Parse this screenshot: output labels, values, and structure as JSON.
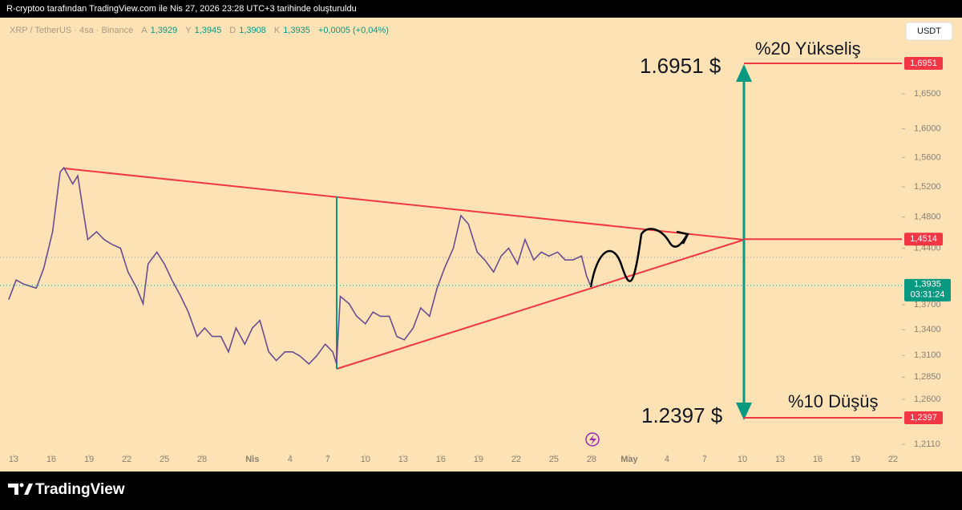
{
  "header": {
    "text": "R-cryptoo tarafından TradingView.com ile Nis 27, 2026 23:28 UTC+3 tarihinde oluşturuldu"
  },
  "chart_data": {
    "type": "line",
    "symbol": "XRP / TetherUS · 4sa · Binance",
    "ohlc": [
      {
        "label": "A",
        "value": "1,3929"
      },
      {
        "label": "Y",
        "value": "1,3945"
      },
      {
        "label": "D",
        "value": "1,3908"
      },
      {
        "label": "K",
        "value": "1,3935"
      }
    ],
    "change": "+0,0005 (+0,04%)",
    "currency": "USDT",
    "color": "#6a4c93",
    "log_scale": true,
    "x": [
      -0.4,
      0.2,
      0.8,
      1.8,
      2.4,
      3.1,
      3.7,
      4.0,
      4.7,
      5.1,
      5.5,
      5.9,
      6.6,
      7.2,
      7.8,
      8.5,
      9.1,
      9.8,
      10.3,
      10.7,
      11.4,
      12.0,
      12.6,
      13.3,
      13.9,
      14.6,
      15.2,
      15.8,
      16.5,
      17.1,
      17.7,
      18.4,
      19.0,
      19.6,
      20.3,
      20.9,
      21.6,
      22.2,
      22.8,
      23.5,
      24.1,
      24.8,
      25.4,
      25.7,
      26.0,
      26.7,
      27.3,
      28.0,
      28.6,
      29.2,
      29.9,
      30.5,
      31.1,
      31.8,
      32.4,
      33.1,
      33.7,
      34.3,
      35.0,
      35.6,
      36.2,
      36.9,
      37.5,
      38.2,
      38.8,
      39.4,
      40.1,
      40.7,
      41.4,
      42.0,
      42.6,
      43.3,
      43.9,
      44.5,
      45.2,
      45.6,
      45.9
    ],
    "values": [
      1.376,
      1.4,
      1.395,
      1.39,
      1.415,
      1.461,
      1.54,
      1.546,
      1.524,
      1.535,
      1.492,
      1.451,
      1.461,
      1.451,
      1.445,
      1.44,
      1.41,
      1.39,
      1.371,
      1.42,
      1.435,
      1.42,
      1.4,
      1.38,
      1.361,
      1.332,
      1.342,
      1.332,
      1.332,
      1.314,
      1.342,
      1.323,
      1.342,
      1.351,
      1.314,
      1.304,
      1.314,
      1.314,
      1.309,
      1.3,
      1.309,
      1.323,
      1.314,
      1.3,
      1.38,
      1.371,
      1.356,
      1.347,
      1.361,
      1.356,
      1.356,
      1.332,
      1.328,
      1.342,
      1.366,
      1.356,
      1.39,
      1.415,
      1.44,
      1.482,
      1.471,
      1.435,
      1.425,
      1.41,
      1.43,
      1.44,
      1.42,
      1.451,
      1.425,
      1.435,
      1.43,
      1.435,
      1.425,
      1.425,
      1.43,
      1.405,
      1.3935
    ],
    "xlim": [
      -0.45,
      70.7
    ],
    "xticks": [
      {
        "value": 0,
        "label": "13"
      },
      {
        "value": 3,
        "label": "16"
      },
      {
        "value": 6,
        "label": "19"
      },
      {
        "value": 9,
        "label": "22"
      },
      {
        "value": 12,
        "label": "25"
      },
      {
        "value": 15,
        "label": "28"
      },
      {
        "value": 19,
        "label": "Nis"
      },
      {
        "value": 22,
        "label": "4"
      },
      {
        "value": 25,
        "label": "7"
      },
      {
        "value": 28,
        "label": "10"
      },
      {
        "value": 31,
        "label": "13"
      },
      {
        "value": 34,
        "label": "16"
      },
      {
        "value": 37,
        "label": "19"
      },
      {
        "value": 40,
        "label": "22"
      },
      {
        "value": 43,
        "label": "25"
      },
      {
        "value": 46,
        "label": "28"
      },
      {
        "value": 49,
        "label": "May"
      },
      {
        "value": 52,
        "label": "4"
      },
      {
        "value": 55,
        "label": "7"
      },
      {
        "value": 58,
        "label": "10"
      },
      {
        "value": 61,
        "label": "13"
      },
      {
        "value": 64,
        "label": "16"
      },
      {
        "value": 67,
        "label": "19"
      },
      {
        "value": 70,
        "label": "22"
      }
    ],
    "ylim": [
      1.2,
      1.755
    ],
    "yticks": [
      {
        "value": 1.211,
        "label": "1,2110"
      },
      {
        "value": 1.26,
        "label": "1,2600"
      },
      {
        "value": 1.285,
        "label": "1,2850"
      },
      {
        "value": 1.31,
        "label": "1,3100"
      },
      {
        "value": 1.34,
        "label": "1,3400"
      },
      {
        "value": 1.37,
        "label": "1,3700"
      },
      {
        "value": 1.44,
        "label": "1,4400"
      },
      {
        "value": 1.48,
        "label": "1,4800"
      },
      {
        "value": 1.52,
        "label": "1,5200"
      },
      {
        "value": 1.56,
        "label": "1,5600"
      },
      {
        "value": 1.6,
        "label": "1,6000"
      },
      {
        "value": 1.65,
        "label": "1,6500"
      }
    ],
    "levels": [
      {
        "value": 1.6951,
        "label": "1,6951"
      },
      {
        "value": 1.4514,
        "label": "1,4514"
      },
      {
        "value": 1.2397,
        "label": "1,2397"
      }
    ],
    "level_color": "#f23645",
    "last_price": {
      "value": 1.3935,
      "label": "1,3935",
      "countdown": "03:31:24",
      "color": "#089981"
    },
    "annotations": {
      "rise": "%20 Yükseliş",
      "rise_price": "1.6951 $",
      "fall": "%10 Düşüş",
      "fall_price": "1.2397 $"
    }
  },
  "footer": {
    "brand": "TradingView"
  }
}
